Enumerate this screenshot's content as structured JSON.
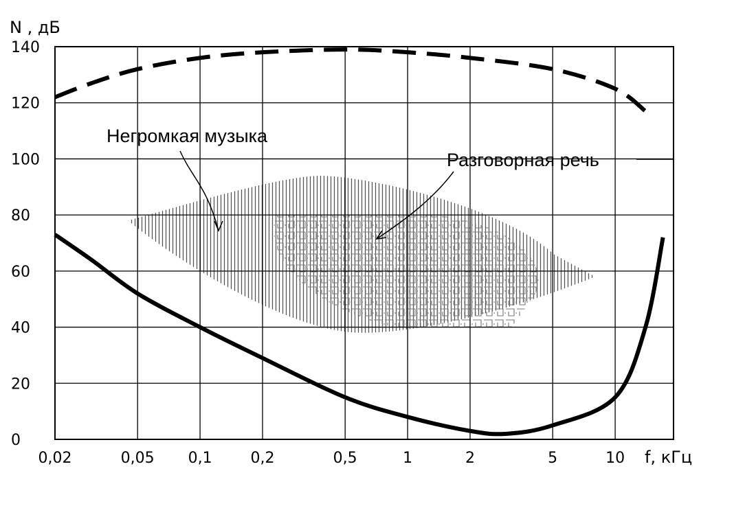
{
  "chart_data": {
    "type": "line",
    "ylabel": "N , дБ",
    "xlabel": "f, кГц",
    "x_scale": "log",
    "x_tick_labels": [
      "0,02",
      "0,05",
      "0,1",
      "0,2",
      "0,5",
      "1",
      "2",
      "5",
      "10"
    ],
    "x_tick_values": [
      0.02,
      0.05,
      0.1,
      0.2,
      0.5,
      1,
      2,
      5,
      10
    ],
    "y_ticks": [
      0,
      20,
      40,
      60,
      80,
      100,
      120,
      140
    ],
    "ylim": [
      0,
      140
    ],
    "grid": true,
    "series": [
      {
        "style": "dashed",
        "x": [
          0.02,
          0.03,
          0.05,
          0.1,
          0.2,
          0.5,
          1,
          2,
          5,
          10,
          14
        ],
        "y": [
          122,
          127,
          132,
          136,
          138,
          139,
          138,
          136,
          132,
          125,
          117
        ]
      },
      {
        "style": "solid",
        "x": [
          0.02,
          0.03,
          0.05,
          0.1,
          0.2,
          0.5,
          1,
          2,
          3,
          5,
          10,
          14,
          17
        ],
        "y": [
          73,
          64,
          52,
          40,
          29,
          15,
          8,
          3,
          2,
          5,
          15,
          40,
          72
        ]
      }
    ],
    "regions": [
      {
        "label": "Негромкая музыка",
        "x_range": [
          0.045,
          8
        ],
        "y_range": [
          38,
          94
        ],
        "pattern": "vertical-hatch"
      },
      {
        "label": "Разговорная речь",
        "x_range": [
          0.2,
          5
        ],
        "y_range": [
          40,
          80
        ],
        "pattern": "maze-hatch"
      }
    ]
  }
}
